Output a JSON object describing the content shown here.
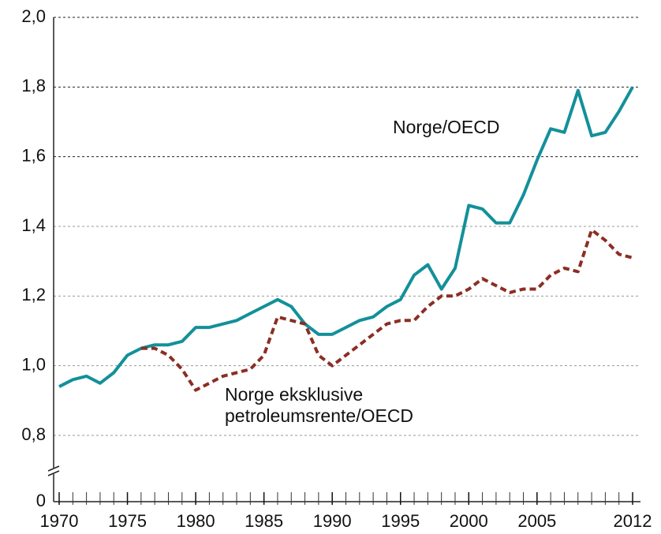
{
  "chart_data": {
    "type": "line",
    "x": [
      1970,
      1971,
      1972,
      1973,
      1974,
      1975,
      1976,
      1977,
      1978,
      1979,
      1980,
      1981,
      1982,
      1983,
      1984,
      1985,
      1986,
      1987,
      1988,
      1989,
      1990,
      1991,
      1992,
      1993,
      1994,
      1995,
      1996,
      1997,
      1998,
      1999,
      2000,
      2001,
      2002,
      2003,
      2004,
      2005,
      2006,
      2007,
      2008,
      2009,
      2010,
      2011,
      2012
    ],
    "series": [
      {
        "name": "Norge/OECD",
        "color": "#13909a",
        "dashed": false,
        "values": [
          0.94,
          0.96,
          0.97,
          0.95,
          0.98,
          1.03,
          1.05,
          1.06,
          1.06,
          1.07,
          1.11,
          1.11,
          1.12,
          1.13,
          1.15,
          1.17,
          1.19,
          1.17,
          1.12,
          1.09,
          1.09,
          1.11,
          1.13,
          1.14,
          1.17,
          1.19,
          1.26,
          1.29,
          1.22,
          1.28,
          1.46,
          1.45,
          1.41,
          1.41,
          1.49,
          1.59,
          1.68,
          1.67,
          1.79,
          1.66,
          1.67,
          1.73,
          1.8
        ]
      },
      {
        "name": "Norge eksklusive petroleumsrente/OECD",
        "color": "#8b2e24",
        "dashed": true,
        "values": [
          null,
          null,
          null,
          null,
          null,
          null,
          1.05,
          1.05,
          1.03,
          0.99,
          0.93,
          0.95,
          0.97,
          0.98,
          0.99,
          1.03,
          1.14,
          1.13,
          1.12,
          1.03,
          1.0,
          1.03,
          1.06,
          1.09,
          1.12,
          1.13,
          1.13,
          1.17,
          1.2,
          1.2,
          1.22,
          1.25,
          1.23,
          1.21,
          1.22,
          1.22,
          1.26,
          1.28,
          1.27,
          1.39,
          1.36,
          1.32,
          1.31
        ]
      }
    ],
    "xlim": [
      1970,
      2012
    ],
    "xticks": [
      1970,
      1975,
      1980,
      1985,
      1990,
      1995,
      2000,
      2005,
      2012
    ],
    "ylim": [
      0,
      2.0
    ],
    "yticks": [
      0,
      {
        "value": 0.8,
        "label": "0,8"
      },
      {
        "value": 1.0,
        "label": "1,0"
      },
      {
        "value": 1.2,
        "label": "1,2"
      },
      {
        "value": 1.4,
        "label": "1,4"
      },
      {
        "value": 1.6,
        "label": "1,6"
      },
      {
        "value": 1.8,
        "label": "1,8"
      },
      {
        "value": 2.0,
        "label": "2,0"
      }
    ],
    "y_axis_break": true,
    "grid": true
  }
}
